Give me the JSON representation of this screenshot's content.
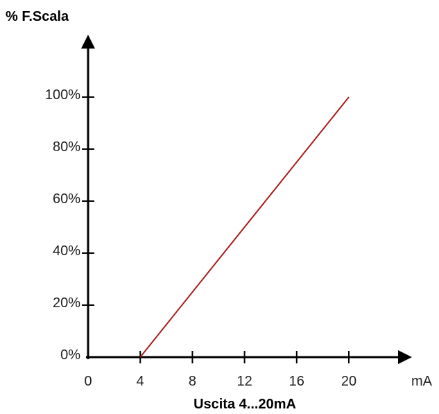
{
  "chart_data": {
    "type": "line",
    "ylabel": "% F.Scala",
    "xlabel": "Uscita 4...20mA",
    "x_unit": "mA",
    "x_ticks": [
      "0",
      "4",
      "8",
      "12",
      "16",
      "20"
    ],
    "y_ticks": [
      "0%",
      "20%",
      "40%",
      "60%",
      "80%",
      "100%"
    ],
    "xlim": [
      0,
      20
    ],
    "ylim": [
      0,
      100
    ],
    "grid": false,
    "series": [
      {
        "x": [
          4,
          20
        ],
        "y": [
          0,
          100
        ]
      }
    ],
    "colors": {
      "line": "#a61c1c",
      "axis": "#000000"
    }
  }
}
